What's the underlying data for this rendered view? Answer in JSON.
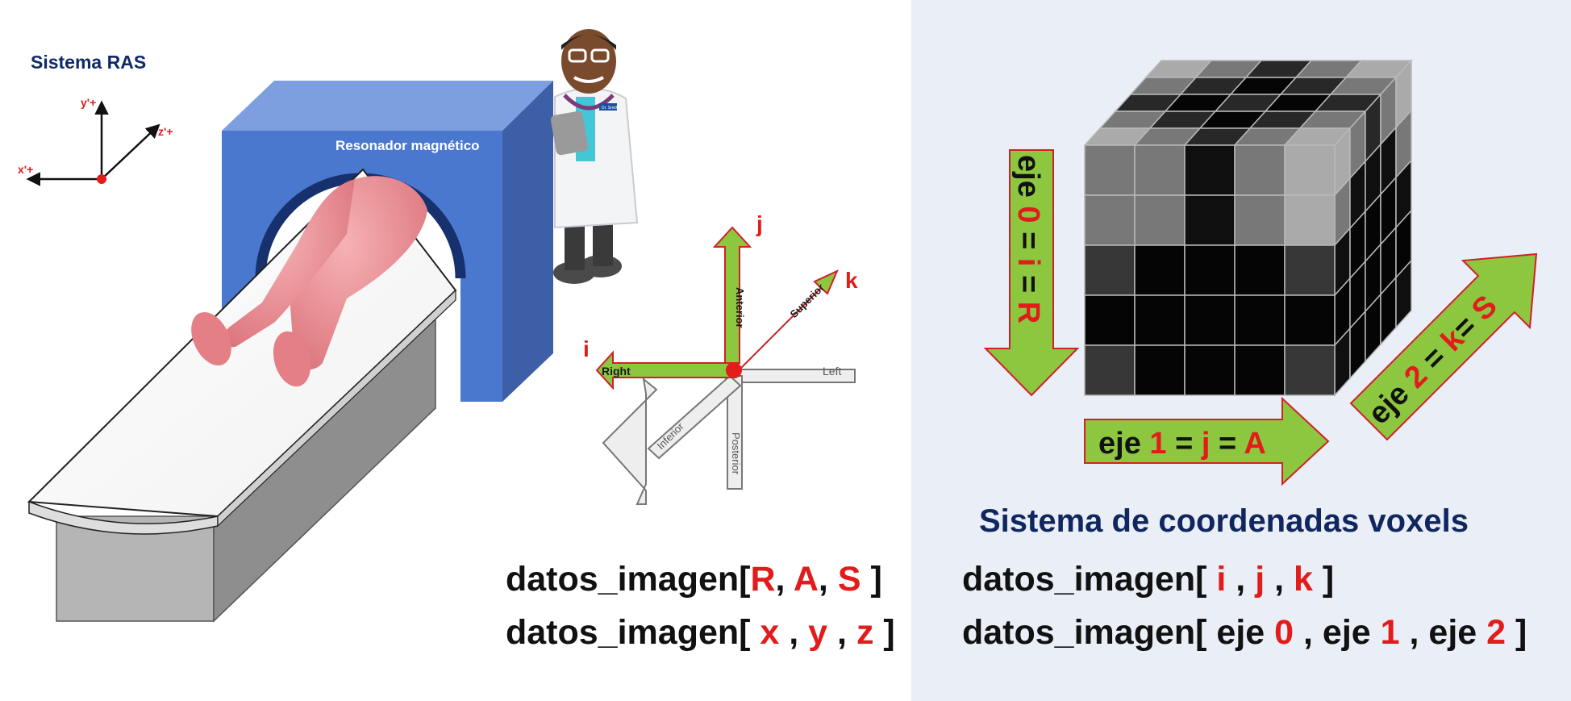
{
  "left": {
    "ras_title": "Sistema RAS",
    "axis_labels": {
      "y": "y'+",
      "z": "z'+",
      "x": "x'+"
    },
    "scanner_label": "Resonador magnético",
    "doctor_badge": "Dr. Smith",
    "direction_labels": {
      "j": "j",
      "k": "k",
      "i": "i",
      "anterior": "Anterior",
      "superior": "Superior",
      "right": "Right",
      "left": "Left",
      "inferior": "Inferior",
      "posterior": "Posterior"
    },
    "code_line_1": {
      "prefix": "datos_imagen[",
      "r": "R",
      "sep1": ", ",
      "a": "A",
      "sep2": ", ",
      "s": "S",
      "suffix": " ]"
    },
    "code_line_2": {
      "prefix": "datos_imagen[ ",
      "x": "x",
      "sep1": " , ",
      "y": "y",
      "sep2": " , ",
      "z": "z",
      "suffix": " ]"
    }
  },
  "right": {
    "arrows": {
      "axis0": {
        "p1": "eje ",
        "num": "0",
        "p2": " = ",
        "idx": "i",
        "p3": " = ",
        "dir": "R"
      },
      "axis1": {
        "p1": "eje ",
        "num": "1",
        "p2": " = ",
        "idx": "j",
        "p3": " = ",
        "dir": "A"
      },
      "axis2": {
        "p1": "eje ",
        "num": "2",
        "p2": " = ",
        "idx": "k",
        "p3": "= ",
        "dir": "S"
      }
    },
    "title": "Sistema de coordenadas voxels",
    "code_line_1": {
      "prefix": "datos_imagen[ ",
      "i": "i",
      "sep1": " ,  ",
      "j": "j",
      "sep2": " ,  ",
      "k": "k",
      "suffix": " ]"
    },
    "code_line_2": {
      "prefix": "datos_imagen[ eje ",
      "n0": "0",
      "sep1": " , eje ",
      "n1": "1",
      "sep2": " , eje ",
      "n2": "2",
      "suffix": " ]"
    }
  },
  "colors": {
    "accent_red": "#e21b1b",
    "arrow_green": "#8dc63f",
    "scanner_blue": "#4a78cf",
    "title_navy": "#10265e",
    "skin_pink": "#ec8a8f"
  },
  "voxel_cube": {
    "front_face": [
      [
        120,
        120,
        15,
        120,
        170
      ],
      [
        120,
        120,
        15,
        120,
        170
      ],
      [
        55,
        5,
        5,
        5,
        55
      ],
      [
        5,
        5,
        5,
        5,
        5
      ],
      [
        55,
        5,
        5,
        5,
        55
      ]
    ],
    "top_face": [
      [
        170,
        120,
        40,
        120,
        170
      ],
      [
        120,
        40,
        5,
        40,
        120
      ],
      [
        40,
        5,
        40,
        5,
        40
      ],
      [
        120,
        40,
        5,
        40,
        120
      ],
      [
        170,
        120,
        40,
        120,
        170
      ]
    ],
    "side_face": [
      [
        170,
        120,
        40,
        120,
        170
      ],
      [
        120,
        15,
        15,
        15,
        120
      ],
      [
        15,
        5,
        5,
        5,
        15
      ],
      [
        5,
        5,
        5,
        5,
        5
      ],
      [
        15,
        5,
        5,
        5,
        15
      ]
    ]
  }
}
